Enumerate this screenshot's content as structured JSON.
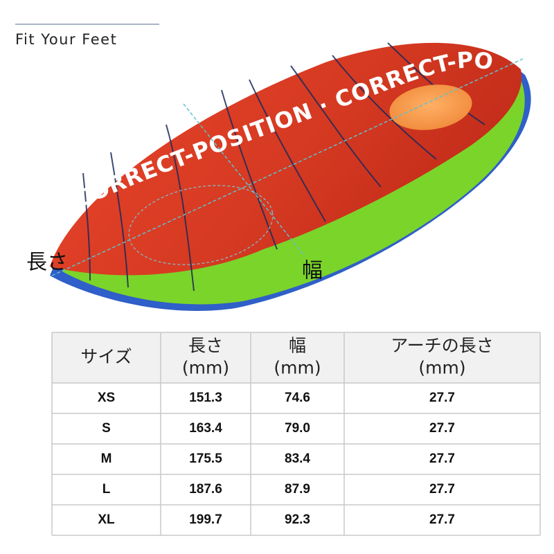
{
  "header": {
    "title": "Fit Your Feet"
  },
  "image": {
    "insole_print": "CORRECT-POSITION · CORRECT-PO",
    "length_label": "長さ",
    "width_label": "幅"
  },
  "table": {
    "header": [
      [
        "サイズ"
      ],
      [
        "長さ",
        "(mm)"
      ],
      [
        "幅",
        "(mm)"
      ],
      [
        "アーチの長さ",
        "(mm)"
      ]
    ],
    "rows": [
      [
        "XS",
        "151.3",
        "74.6",
        "27.7"
      ],
      [
        "S",
        "163.4",
        "79.0",
        "27.7"
      ],
      [
        "M",
        "175.5",
        "83.4",
        "27.7"
      ],
      [
        "L",
        "187.6",
        "87.9",
        "27.7"
      ],
      [
        "XL",
        "199.7",
        "92.3",
        "27.7"
      ]
    ]
  }
}
